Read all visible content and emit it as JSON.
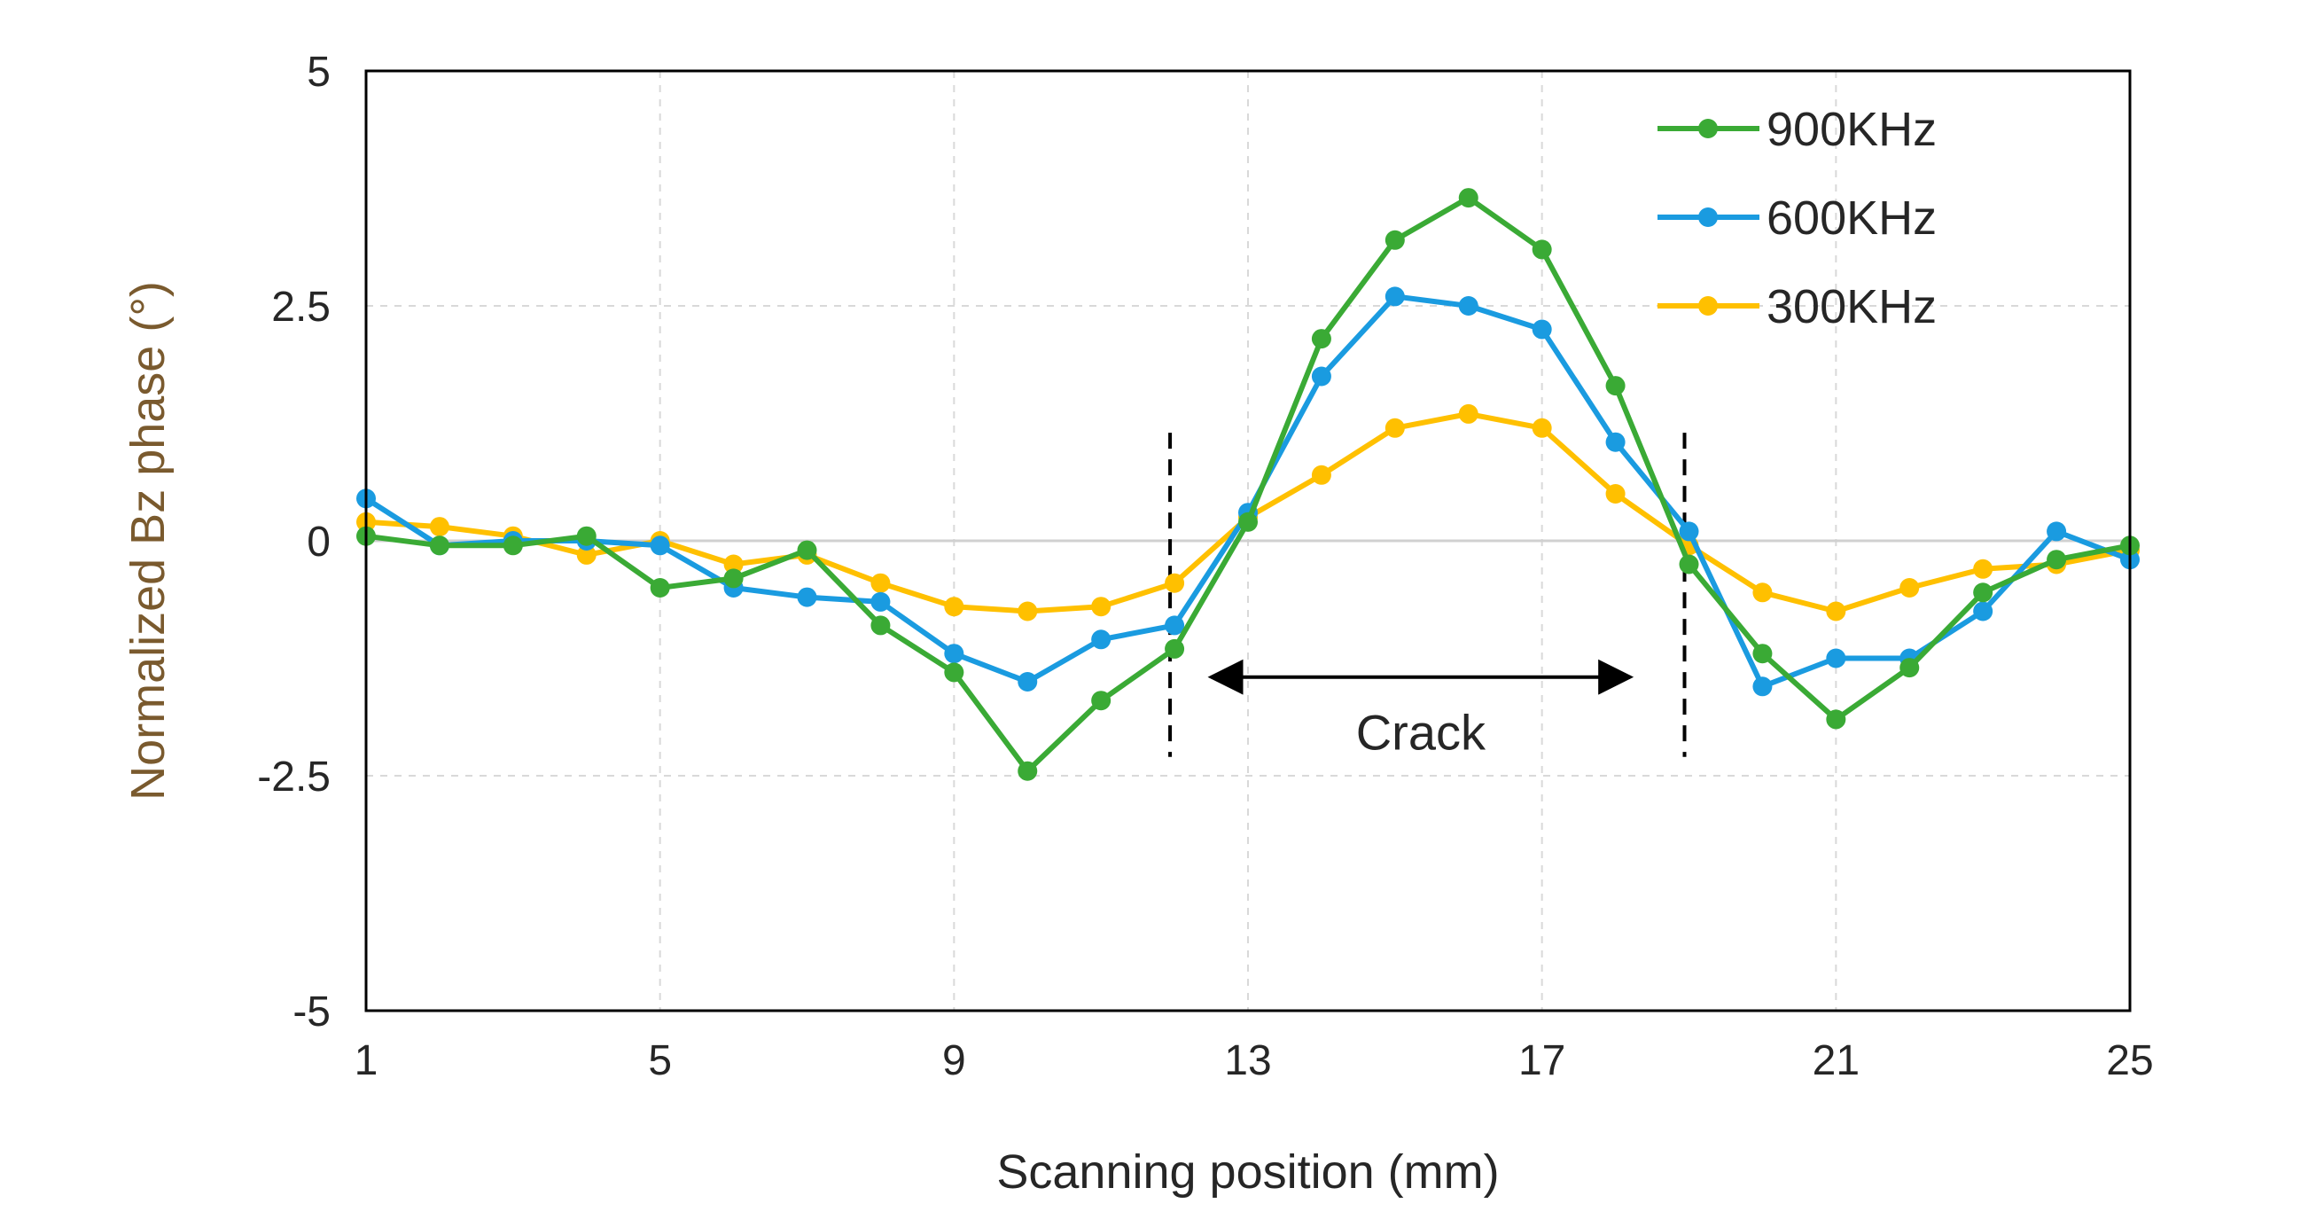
{
  "chart_data": {
    "type": "line",
    "title": "",
    "xlabel": "Scanning position (mm)",
    "ylabel": "Normalized Bz phase (°)",
    "xlim": [
      1,
      25
    ],
    "ylim": [
      -5,
      5
    ],
    "xticks": [
      1,
      5,
      9,
      13,
      17,
      21,
      25
    ],
    "xtick_labels": [
      "1",
      "5",
      "9",
      "13",
      "17",
      "21",
      "25"
    ],
    "yticks": [
      5,
      2.5,
      0,
      -2.5,
      -5
    ],
    "ytick_labels": [
      "5",
      "2.5",
      "0",
      "-2.5",
      "-5"
    ],
    "grid": true,
    "legend_position": "top-right",
    "x": [
      1,
      2,
      3,
      4,
      5,
      6,
      7,
      8,
      9,
      10,
      11,
      12,
      13,
      14,
      15,
      16,
      17,
      18,
      19,
      20,
      21,
      22,
      23,
      24,
      25
    ],
    "series": [
      {
        "name": "900KHz",
        "color": "#3aaa35",
        "values": [
          0.05,
          -0.05,
          -0.05,
          0.05,
          -0.5,
          -0.4,
          -0.1,
          -0.9,
          -1.4,
          -2.45,
          -1.7,
          -1.15,
          0.2,
          2.15,
          3.2,
          3.65,
          3.1,
          1.65,
          -0.25,
          -1.2,
          -1.9,
          -1.35,
          -0.55,
          -0.2,
          -0.05
        ]
      },
      {
        "name": "600KHz",
        "color": "#1a9be0",
        "values": [
          0.45,
          -0.05,
          0.0,
          0.0,
          -0.05,
          -0.5,
          -0.6,
          -0.65,
          -1.2,
          -1.5,
          -1.05,
          -0.9,
          0.3,
          1.75,
          2.6,
          2.5,
          2.25,
          1.05,
          0.1,
          -1.55,
          -1.25,
          -1.25,
          -0.75,
          0.1,
          -0.2
        ]
      },
      {
        "name": "300KHz",
        "color": "#ffc000",
        "values": [
          0.2,
          0.15,
          0.05,
          -0.15,
          0.0,
          -0.25,
          -0.15,
          -0.45,
          -0.7,
          -0.75,
          -0.7,
          -0.45,
          0.25,
          0.7,
          1.2,
          1.35,
          1.2,
          0.5,
          -0.05,
          -0.55,
          -0.75,
          -0.5,
          -0.3,
          -0.25,
          -0.1
        ]
      }
    ],
    "annotations": {
      "crack_label": "Crack",
      "crack_start_x": 12,
      "crack_end_x": 19,
      "arrow_from_x": 12.5,
      "arrow_to_x": 18.2,
      "arrow_y": -1.45,
      "boundary_line_y_top": 1.15,
      "boundary_line_y_bottom": -2.3
    }
  }
}
